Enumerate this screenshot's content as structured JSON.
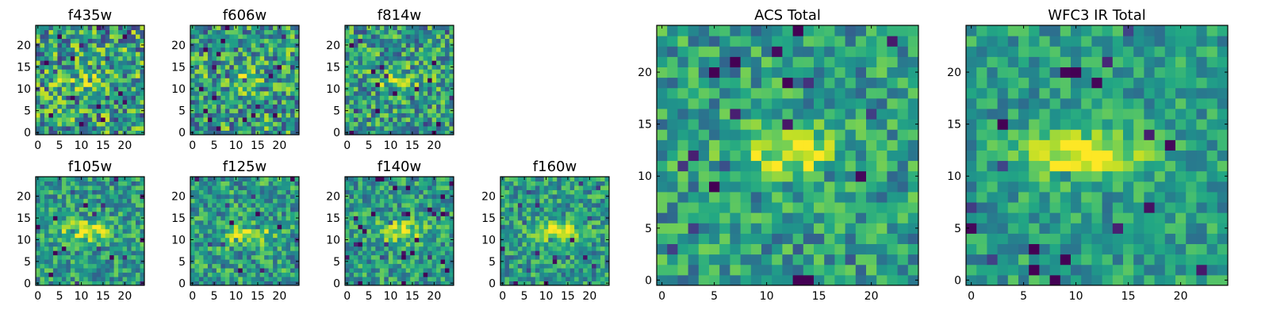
{
  "chart_data": [
    {
      "type": "heatmap",
      "title": "f435w",
      "size": 25,
      "xticks": [
        0,
        5,
        10,
        15,
        20
      ],
      "yticks": [
        0,
        5,
        10,
        15,
        20
      ],
      "xlim": [
        -0.5,
        24.5
      ],
      "ylim": [
        -0.5,
        24.5
      ],
      "colormap": "viridis",
      "source_center": [
        11,
        12
      ],
      "source_strength": 0.18,
      "noise": 0.55,
      "seed": 11
    },
    {
      "type": "heatmap",
      "title": "f606w",
      "size": 25,
      "xticks": [
        0,
        5,
        10,
        15,
        20
      ],
      "yticks": [
        0,
        5,
        10,
        15,
        20
      ],
      "xlim": [
        -0.5,
        24.5
      ],
      "ylim": [
        -0.5,
        24.5
      ],
      "colormap": "viridis",
      "source_center": [
        11,
        12
      ],
      "source_strength": 0.22,
      "noise": 0.5,
      "seed": 23
    },
    {
      "type": "heatmap",
      "title": "f814w",
      "size": 25,
      "xticks": [
        0,
        5,
        10,
        15,
        20
      ],
      "yticks": [
        0,
        5,
        10,
        15,
        20
      ],
      "xlim": [
        -0.5,
        24.5
      ],
      "ylim": [
        -0.5,
        24.5
      ],
      "colormap": "viridis",
      "source_center": [
        12,
        12
      ],
      "source_strength": 0.28,
      "noise": 0.45,
      "seed": 37
    },
    {
      "type": "heatmap",
      "title": "f105w",
      "size": 25,
      "xticks": [
        0,
        5,
        10,
        15,
        20
      ],
      "yticks": [
        0,
        5,
        10,
        15,
        20
      ],
      "xlim": [
        -0.5,
        24.5
      ],
      "ylim": [
        -0.5,
        24.5
      ],
      "colormap": "viridis",
      "source_center": [
        11,
        12
      ],
      "source_strength": 0.45,
      "noise": 0.35,
      "seed": 41
    },
    {
      "type": "heatmap",
      "title": "f125w",
      "size": 25,
      "xticks": [
        0,
        5,
        10,
        15,
        20
      ],
      "yticks": [
        0,
        5,
        10,
        15,
        20
      ],
      "xlim": [
        -0.5,
        24.5
      ],
      "ylim": [
        -0.5,
        24.5
      ],
      "colormap": "viridis",
      "source_center": [
        13,
        11
      ],
      "source_strength": 0.4,
      "noise": 0.38,
      "seed": 53
    },
    {
      "type": "heatmap",
      "title": "f140w",
      "size": 25,
      "xticks": [
        0,
        5,
        10,
        15,
        20
      ],
      "yticks": [
        0,
        5,
        10,
        15,
        20
      ],
      "xlim": [
        -0.5,
        24.5
      ],
      "ylim": [
        -0.5,
        24.5
      ],
      "colormap": "viridis",
      "source_center": [
        12,
        12
      ],
      "source_strength": 0.45,
      "noise": 0.35,
      "seed": 67
    },
    {
      "type": "heatmap",
      "title": "f160w",
      "size": 25,
      "xticks": [
        0,
        5,
        10,
        15,
        20
      ],
      "yticks": [
        0,
        5,
        10,
        15,
        20
      ],
      "xlim": [
        -0.5,
        24.5
      ],
      "ylim": [
        -0.5,
        24.5
      ],
      "colormap": "viridis",
      "source_center": [
        12,
        12
      ],
      "source_strength": 0.5,
      "noise": 0.35,
      "seed": 79
    },
    {
      "type": "heatmap",
      "title": "ACS Total",
      "size": 25,
      "xticks": [
        0,
        5,
        10,
        15,
        20
      ],
      "yticks": [
        0,
        5,
        10,
        15,
        20
      ],
      "xlim": [
        -0.5,
        24.5
      ],
      "ylim": [
        -0.5,
        24.5
      ],
      "colormap": "viridis",
      "source_center": [
        12,
        12
      ],
      "source_strength": 0.45,
      "noise": 0.35,
      "seed": 97
    },
    {
      "type": "heatmap",
      "title": "WFC3 IR Total",
      "size": 25,
      "xticks": [
        0,
        5,
        10,
        15,
        20
      ],
      "yticks": [
        0,
        5,
        10,
        15,
        20
      ],
      "xlim": [
        -0.5,
        24.5
      ],
      "ylim": [
        -0.5,
        24.5
      ],
      "colormap": "viridis",
      "source_center": [
        11,
        12
      ],
      "source_strength": 0.6,
      "noise": 0.28,
      "seed": 113
    }
  ]
}
